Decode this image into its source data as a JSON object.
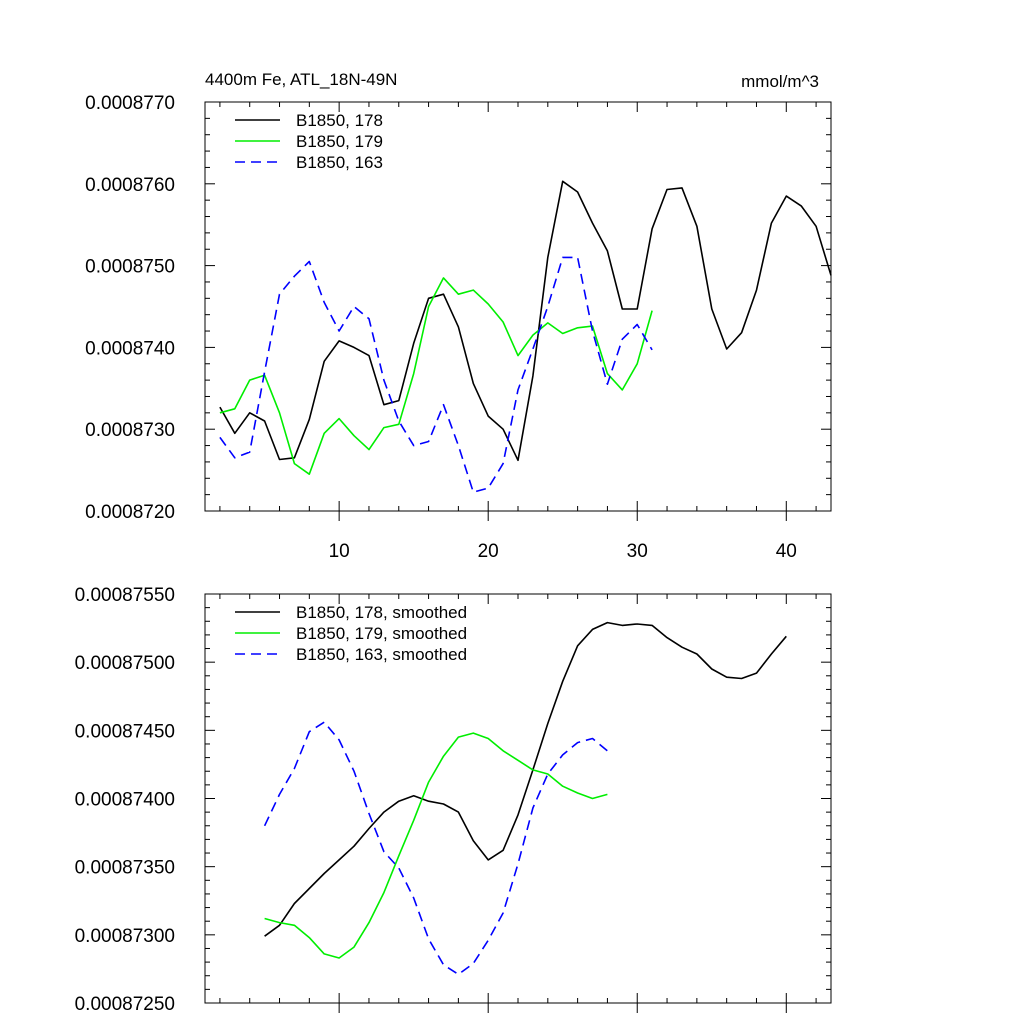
{
  "chart_data": [
    {
      "type": "line",
      "title": "4400m Fe, ATL_18N-49N",
      "units_label": "mmol/m^3",
      "xlim": [
        1,
        43
      ],
      "ylim": [
        0.000872,
        0.000877
      ],
      "x_ticks": [
        10,
        20,
        30,
        40
      ],
      "x_tick_labels": [
        "10",
        "20",
        "30",
        "40"
      ],
      "y_ticks": [
        0.000872,
        0.000873,
        0.000874,
        0.000875,
        0.000876,
        0.000877
      ],
      "y_tick_labels": [
        "0.0008720",
        "0.0008730",
        "0.0008740",
        "0.0008750",
        "0.0008760",
        "0.0008770"
      ],
      "legend_position": "top-left",
      "series": [
        {
          "name": "B1850, 178",
          "color": "#000000",
          "dash": "solid",
          "x": [
            2,
            3,
            4,
            5,
            6,
            7,
            8,
            9,
            10,
            11,
            12,
            13,
            14,
            15,
            16,
            17,
            18,
            19,
            20,
            21,
            22,
            23,
            24,
            25,
            26,
            27,
            28,
            29,
            30,
            31,
            32,
            33,
            34,
            35,
            36,
            37,
            38,
            39,
            40,
            41,
            42,
            43
          ],
          "values": [
            0.00087327,
            0.00087295,
            0.0008732,
            0.0008731,
            0.00087263,
            0.00087265,
            0.00087312,
            0.00087383,
            0.00087408,
            0.000874,
            0.0008739,
            0.0008733,
            0.00087335,
            0.00087405,
            0.0008746,
            0.00087465,
            0.00087425,
            0.00087356,
            0.00087316,
            0.000873,
            0.00087262,
            0.00087365,
            0.0008751,
            0.00087603,
            0.0008759,
            0.00087552,
            0.00087518,
            0.00087447,
            0.00087447,
            0.00087545,
            0.00087593,
            0.00087595,
            0.00087548,
            0.00087447,
            0.00087398,
            0.00087418,
            0.0008747,
            0.00087552,
            0.00087585,
            0.00087573,
            0.00087548,
            0.00087488
          ]
        },
        {
          "name": "B1850, 179",
          "color": "#00ee00",
          "dash": "solid",
          "x": [
            2,
            3,
            4,
            5,
            6,
            7,
            8,
            9,
            10,
            11,
            12,
            13,
            14,
            15,
            16,
            17,
            18,
            19,
            20,
            21,
            22,
            23,
            24,
            25,
            26,
            27,
            28,
            29,
            30,
            31
          ],
          "values": [
            0.0008732,
            0.00087325,
            0.0008736,
            0.00087366,
            0.0008732,
            0.00087258,
            0.00087245,
            0.00087295,
            0.00087313,
            0.00087292,
            0.00087275,
            0.00087302,
            0.00087306,
            0.00087368,
            0.0008745,
            0.00087485,
            0.00087465,
            0.0008747,
            0.00087453,
            0.00087431,
            0.0008739,
            0.00087415,
            0.0008743,
            0.00087417,
            0.00087424,
            0.00087426,
            0.00087368,
            0.00087348,
            0.0008738,
            0.00087445
          ]
        },
        {
          "name": "B1850, 163",
          "color": "#0000ff",
          "dash": "dashed",
          "x": [
            2,
            3,
            4,
            5,
            6,
            7,
            8,
            9,
            10,
            11,
            12,
            13,
            14,
            15,
            16,
            17,
            18,
            19,
            20,
            21,
            22,
            23,
            24,
            25,
            26,
            27,
            28,
            29,
            30,
            31
          ],
          "values": [
            0.0008729,
            0.00087265,
            0.00087272,
            0.0008737,
            0.00087465,
            0.00087487,
            0.00087505,
            0.00087455,
            0.0008742,
            0.0008745,
            0.00087435,
            0.0008736,
            0.0008731,
            0.0008728,
            0.00087285,
            0.0008733,
            0.0008728,
            0.00087223,
            0.00087228,
            0.00087258,
            0.00087348,
            0.00087398,
            0.0008745,
            0.0008751,
            0.0008751,
            0.0008742,
            0.00087355,
            0.0008741,
            0.00087428,
            0.00087397
          ]
        }
      ]
    },
    {
      "type": "line",
      "title": "",
      "xlim": [
        1,
        43
      ],
      "ylim": [
        0.0008725,
        0.0008755
      ],
      "x_ticks": [
        10,
        20,
        30,
        40
      ],
      "x_tick_labels": [],
      "y_ticks": [
        0.0008725,
        0.000873,
        0.0008735,
        0.000874,
        0.0008745,
        0.000875,
        0.0008755
      ],
      "y_tick_labels": [
        "0.00087250",
        "0.00087300",
        "0.00087350",
        "0.00087400",
        "0.00087450",
        "0.00087500",
        "0.00087550"
      ],
      "legend_position": "top-left",
      "series": [
        {
          "name": "B1850, 178, smoothed",
          "color": "#000000",
          "dash": "solid",
          "x": [
            5,
            6,
            7,
            8,
            9,
            10,
            11,
            12,
            13,
            14,
            15,
            16,
            17,
            18,
            19,
            20,
            21,
            22,
            23,
            24,
            25,
            26,
            27,
            28,
            29,
            30,
            31,
            32,
            33,
            34,
            35,
            36,
            37,
            38,
            39,
            40
          ],
          "values": [
            0.00087299,
            0.00087307,
            0.00087323,
            0.00087334,
            0.00087345,
            0.00087355,
            0.00087365,
            0.00087378,
            0.0008739,
            0.00087398,
            0.00087402,
            0.00087398,
            0.00087396,
            0.0008739,
            0.00087369,
            0.00087355,
            0.00087362,
            0.00087388,
            0.00087421,
            0.00087455,
            0.00087486,
            0.00087512,
            0.00087524,
            0.00087529,
            0.00087527,
            0.00087528,
            0.00087527,
            0.00087518,
            0.00087511,
            0.00087506,
            0.00087495,
            0.00087489,
            0.00087488,
            0.00087492,
            0.00087506,
            0.00087519
          ]
        },
        {
          "name": "B1850, 179, smoothed",
          "color": "#00ee00",
          "dash": "solid",
          "x": [
            5,
            6,
            7,
            8,
            9,
            10,
            11,
            12,
            13,
            14,
            15,
            16,
            17,
            18,
            19,
            20,
            21,
            22,
            23,
            24,
            25,
            26,
            27,
            28
          ],
          "values": [
            0.00087312,
            0.00087309,
            0.00087307,
            0.00087298,
            0.00087286,
            0.00087283,
            0.00087291,
            0.00087309,
            0.00087331,
            0.00087358,
            0.00087384,
            0.00087412,
            0.00087431,
            0.00087445,
            0.00087448,
            0.00087444,
            0.00087435,
            0.00087428,
            0.00087421,
            0.00087418,
            0.00087409,
            0.00087404,
            0.000874,
            0.00087403
          ]
        },
        {
          "name": "B1850, 163, smoothed",
          "color": "#0000ff",
          "dash": "dashed",
          "x": [
            5,
            6,
            7,
            8,
            9,
            10,
            11,
            12,
            13,
            14,
            15,
            16,
            17,
            18,
            19,
            20,
            21,
            22,
            23,
            24,
            25,
            26,
            27,
            28
          ],
          "values": [
            0.0008738,
            0.00087403,
            0.00087422,
            0.00087449,
            0.00087456,
            0.00087443,
            0.0008742,
            0.00087389,
            0.00087361,
            0.00087349,
            0.00087327,
            0.00087297,
            0.00087278,
            0.00087271,
            0.00087279,
            0.00087296,
            0.00087316,
            0.00087352,
            0.00087393,
            0.00087418,
            0.00087432,
            0.00087441,
            0.00087444,
            0.00087435
          ]
        }
      ]
    }
  ]
}
